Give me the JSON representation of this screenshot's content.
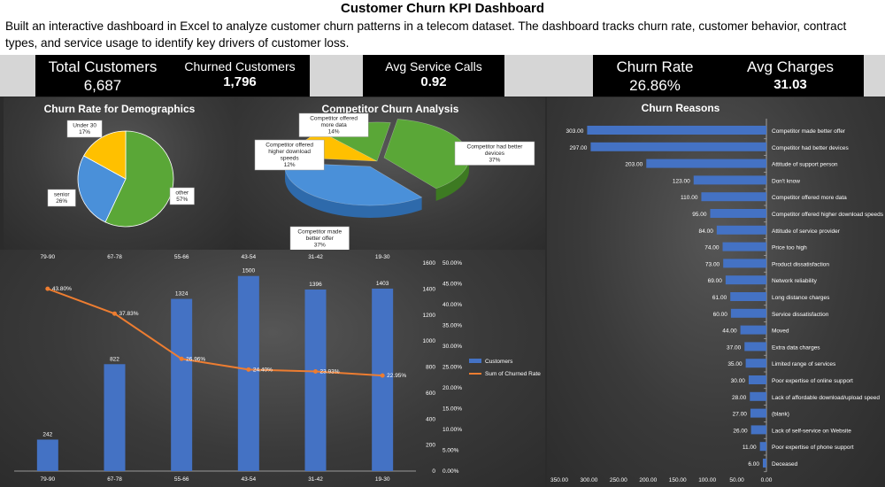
{
  "header": {
    "title": "Customer Churn KPI Dashboard",
    "description": "Built an interactive dashboard in Excel to analyze customer churn patterns in a telecom dataset. The dashboard tracks churn rate, customer behavior, contract types, and service usage to identify key drivers of customer loss."
  },
  "kpis": {
    "total_customers": {
      "label": "Total Customers",
      "value": "6,687"
    },
    "churned_customers": {
      "label": "Churned Customers",
      "value": "1,796"
    },
    "avg_service_calls": {
      "label": "Avg Service Calls",
      "value": "0.92"
    },
    "churn_rate": {
      "label": "Churn Rate",
      "value": "26.86%"
    },
    "avg_charges": {
      "label": "Avg Charges",
      "value": "31.03"
    }
  },
  "colors": {
    "bar_blue": "#4472c4",
    "line_orange": "#ed7d31",
    "pie_green": "#5aa737",
    "pie_blue": "#4a90d9",
    "pie_yellow": "#ffc000"
  },
  "chart_data": [
    {
      "type": "pie",
      "title": "Churn Rate for Demographics",
      "slices": [
        {
          "label": "other",
          "value": 57,
          "pct_label": "57%"
        },
        {
          "label": "senior",
          "value": 26,
          "pct_label": "26%"
        },
        {
          "label": "Under 30",
          "value": 17,
          "pct_label": "17%"
        }
      ]
    },
    {
      "type": "pie",
      "title": "Competitor Churn Analysis",
      "three_d": true,
      "slices": [
        {
          "label": "Competitor had better devices",
          "value": 37,
          "pct_label": "37%"
        },
        {
          "label": "Competitor made better offer",
          "value": 37,
          "pct_label": "37%"
        },
        {
          "label": "Competitor offered higher download speeds",
          "value": 12,
          "pct_label": "12%"
        },
        {
          "label": "Competitor offered more data",
          "value": 14,
          "pct_label": "14%"
        }
      ]
    },
    {
      "type": "bar",
      "title": "Churn Reasons",
      "orientation": "horizontal",
      "reversed_axis": true,
      "xlim": [
        0,
        350
      ],
      "ticks": [
        "350.00",
        "300.00",
        "250.00",
        "200.00",
        "150.00",
        "100.00",
        "50.00",
        "0.00"
      ],
      "categories": [
        "Competitor made better offer",
        "Competitor had better devices",
        "Attitude of support person",
        "Don't know",
        "Competitor offered more data",
        "Competitor offered higher download speeds",
        "Attitude of service provider",
        "Price too high",
        "Product dissatisfaction",
        "Network reliability",
        "Long distance charges",
        "Service dissatisfaction",
        "Moved",
        "Extra data charges",
        "Limited range of services",
        "Poor expertise of online support",
        "Lack of affordable download/upload speed",
        "(blank)",
        "Lack of self-service on Website",
        "Poor expertise of phone support",
        "Deceased"
      ],
      "values": [
        303,
        297,
        203,
        123,
        110,
        95,
        84,
        74,
        73,
        69,
        61,
        60,
        44,
        37,
        35,
        30,
        28,
        27,
        26,
        11,
        6
      ],
      "value_labels": [
        "303.00",
        "297.00",
        "203.00",
        "123.00",
        "110.00",
        "95.00",
        "84.00",
        "74.00",
        "73.00",
        "69.00",
        "61.00",
        "60.00",
        "44.00",
        "37.00",
        "35.00",
        "30.00",
        "28.00",
        "27.00",
        "26.00",
        "11.00",
        "6.00"
      ]
    },
    {
      "type": "bar",
      "combo": "bar-line",
      "categories": [
        "79-90",
        "67-78",
        "55-66",
        "43-54",
        "31-42",
        "19-30"
      ],
      "top_categories": [
        "79-90",
        "67-78",
        "55-66",
        "43-54",
        "31-42",
        "19-30"
      ],
      "series": [
        {
          "name": "Customers",
          "type": "bar",
          "axis": "left",
          "values": [
            242,
            822,
            1324,
            1500,
            1396,
            1403
          ],
          "labels": [
            "242",
            "822",
            "1324",
            "1500",
            "1396",
            "1403"
          ]
        },
        {
          "name": "Sum of Churned Rate",
          "type": "line",
          "axis": "right",
          "values": [
            43.8,
            37.83,
            26.96,
            24.4,
            23.93,
            22.95
          ],
          "labels": [
            "43.80%",
            "37.83%",
            "26.96%",
            "24.40%",
            "23.93%",
            "22.95%"
          ]
        }
      ],
      "ylim_left": [
        0,
        1600
      ],
      "left_ticks": [
        "0",
        "200",
        "400",
        "600",
        "800",
        "1000",
        "1200",
        "1400",
        "1600"
      ],
      "ylim_right": [
        0,
        50
      ],
      "right_ticks": [
        "0.00%",
        "5.00%",
        "10.00%",
        "15.00%",
        "20.00%",
        "25.00%",
        "30.00%",
        "35.00%",
        "40.00%",
        "45.00%",
        "50.00%"
      ],
      "legend": "right"
    }
  ]
}
